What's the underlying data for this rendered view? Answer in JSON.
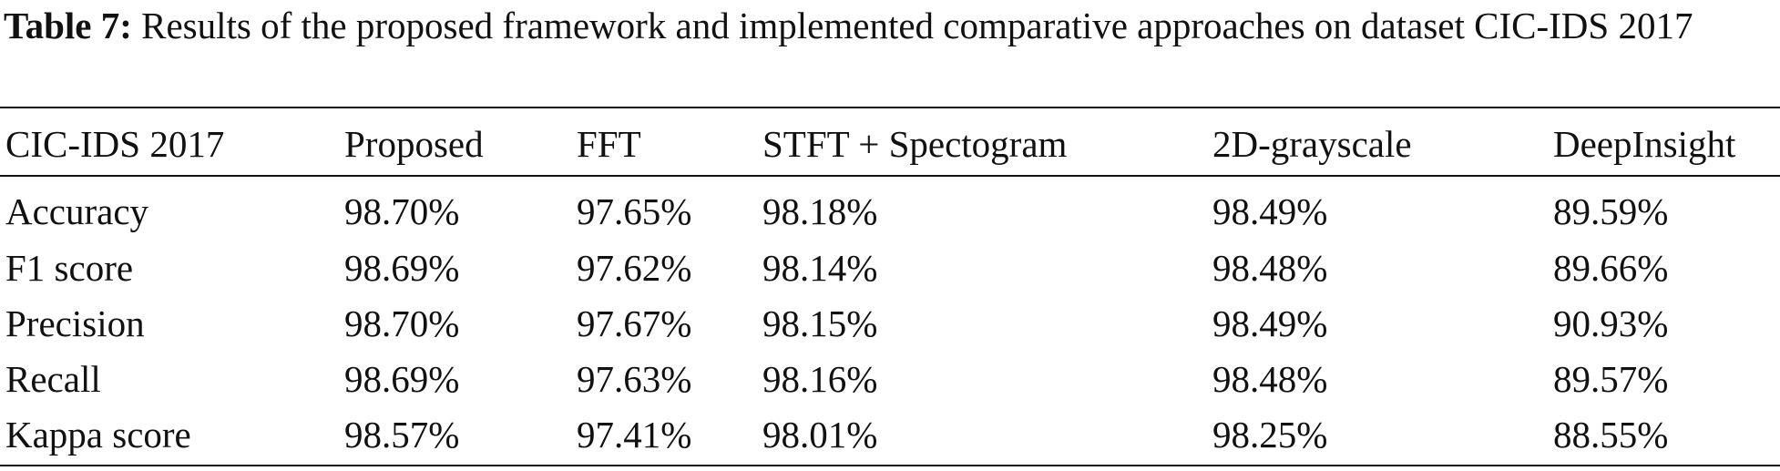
{
  "caption": {
    "label": "Table 7:",
    "text": "Results of the proposed framework and implemented comparative approaches on dataset CIC-IDS 2017"
  },
  "table": {
    "header": [
      "CIC-IDS 2017",
      "Proposed",
      "FFT",
      "STFT + Spectogram",
      "2D-grayscale",
      "DeepInsight"
    ],
    "rows": [
      [
        "Accuracy",
        "98.70%",
        "97.65%",
        "98.18%",
        "98.49%",
        "89.59%"
      ],
      [
        "F1 score",
        "98.69%",
        "97.62%",
        "98.14%",
        "98.48%",
        "89.66%"
      ],
      [
        "Precision",
        "98.70%",
        "97.67%",
        "98.15%",
        "98.49%",
        "90.93%"
      ],
      [
        "Recall",
        "98.69%",
        "97.63%",
        "98.16%",
        "98.48%",
        "89.57%"
      ],
      [
        "Kappa score",
        "98.57%",
        "97.41%",
        "98.01%",
        "98.25%",
        "88.55%"
      ]
    ]
  }
}
